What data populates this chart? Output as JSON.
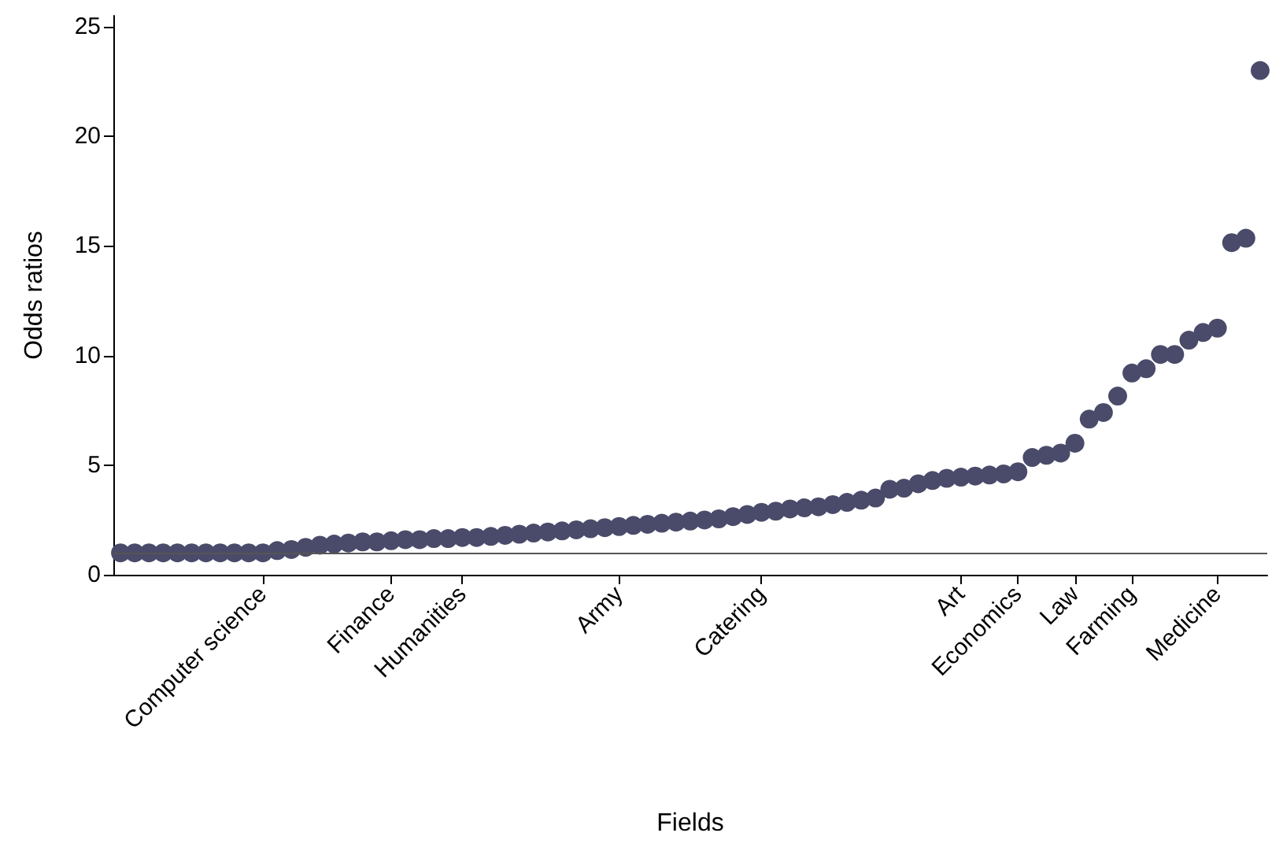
{
  "chart_data": {
    "type": "scatter",
    "xlabel": "Fields",
    "ylabel": "Odds ratios",
    "categories": [
      null,
      null,
      null,
      null,
      null,
      null,
      null,
      null,
      null,
      null,
      "Computer science",
      null,
      null,
      null,
      null,
      null,
      null,
      null,
      null,
      "Finance",
      null,
      null,
      null,
      null,
      "Humanities",
      null,
      null,
      null,
      null,
      null,
      null,
      null,
      null,
      null,
      null,
      "Army",
      null,
      null,
      null,
      null,
      null,
      null,
      null,
      null,
      null,
      "Catering",
      null,
      null,
      null,
      null,
      null,
      null,
      null,
      null,
      null,
      null,
      null,
      null,
      null,
      "Art",
      null,
      null,
      null,
      "Economics",
      null,
      null,
      null,
      "Law",
      null,
      null,
      null,
      "Farming",
      null,
      null,
      null,
      null,
      null,
      "Medicine",
      null,
      null,
      null
    ],
    "series": [
      {
        "color": "#4a4b6a",
        "values": [
          1,
          1,
          1,
          1,
          1,
          1,
          1,
          1,
          1,
          1,
          1,
          1.1,
          1.15,
          1.25,
          1.35,
          1.4,
          1.45,
          1.5,
          1.5,
          1.55,
          1.6,
          1.6,
          1.65,
          1.65,
          1.7,
          1.7,
          1.75,
          1.8,
          1.85,
          1.9,
          1.95,
          2,
          2.05,
          2.1,
          2.15,
          2.2,
          2.25,
          2.3,
          2.35,
          2.4,
          2.45,
          2.5,
          2.55,
          2.65,
          2.75,
          2.85,
          2.9,
          3,
          3.05,
          3.1,
          3.2,
          3.3,
          3.4,
          3.5,
          3.9,
          3.95,
          4.15,
          4.3,
          4.4,
          4.45,
          4.5,
          4.55,
          4.6,
          4.7,
          5.35,
          5.45,
          5.55,
          6,
          7.1,
          7.4,
          8.15,
          9.2,
          9.4,
          10.05,
          10.05,
          10.7,
          11.05,
          11.25,
          15.15,
          15.35,
          23
        ]
      }
    ],
    "ylim": [
      0,
      25.5
    ],
    "yticks": [
      0,
      5,
      10,
      15,
      20,
      25
    ],
    "ref_lines": [
      {
        "axis": "y",
        "value": 1,
        "color": "#555555"
      }
    ],
    "grid": false,
    "marker": "circle"
  }
}
